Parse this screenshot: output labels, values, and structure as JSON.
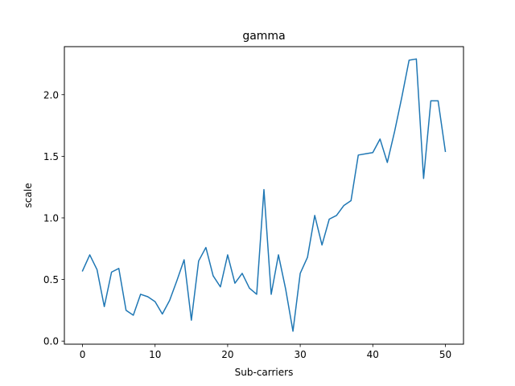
{
  "chart_data": {
    "type": "line",
    "title": "gamma",
    "xlabel": "Sub-carriers",
    "ylabel": "scale",
    "xlim": [
      -2.5,
      52.5
    ],
    "ylim": [
      -0.025,
      2.39
    ],
    "xticks": [
      0,
      10,
      20,
      30,
      40,
      50
    ],
    "xtick_labels": [
      "0",
      "10",
      "20",
      "30",
      "40",
      "50"
    ],
    "yticks": [
      0.0,
      0.5,
      1.0,
      1.5,
      2.0
    ],
    "ytick_labels": [
      "0.0",
      "0.5",
      "1.0",
      "1.5",
      "2.0"
    ],
    "grid": false,
    "series": [
      {
        "color": "#1f77b4",
        "x": [
          0,
          1,
          2,
          3,
          4,
          5,
          6,
          7,
          8,
          9,
          10,
          11,
          12,
          13,
          14,
          15,
          16,
          17,
          18,
          19,
          20,
          21,
          22,
          23,
          24,
          25,
          26,
          27,
          28,
          29,
          30,
          31,
          32,
          33,
          34,
          35,
          36,
          37,
          38,
          39,
          40,
          41,
          42,
          43,
          44,
          45,
          46,
          47,
          48,
          49,
          50
        ],
        "y": [
          0.57,
          0.7,
          0.58,
          0.28,
          0.56,
          0.59,
          0.25,
          0.21,
          0.38,
          0.36,
          0.32,
          0.22,
          0.33,
          0.49,
          0.66,
          0.17,
          0.65,
          0.76,
          0.53,
          0.44,
          0.7,
          0.47,
          0.55,
          0.43,
          0.38,
          1.23,
          0.38,
          0.7,
          0.42,
          0.08,
          0.55,
          0.68,
          1.02,
          0.78,
          0.99,
          1.02,
          1.1,
          1.14,
          1.51,
          1.52,
          1.53,
          1.64,
          1.45,
          1.7,
          1.98,
          2.28,
          2.29,
          1.32,
          1.95,
          1.95,
          1.54
        ]
      }
    ]
  }
}
